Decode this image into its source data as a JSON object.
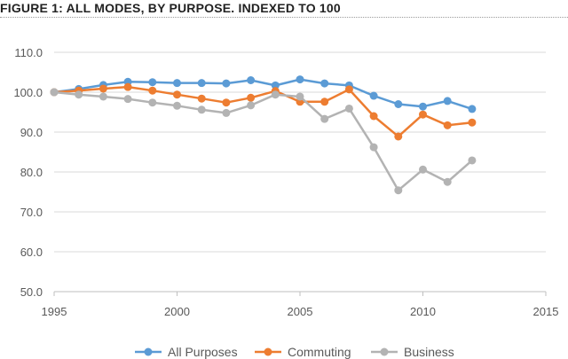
{
  "figure_title": "FIGURE 1: ALL MODES, BY PURPOSE. INDEXED TO 100",
  "chart_data": {
    "type": "line",
    "title": "",
    "xlabel": "",
    "ylabel": "",
    "xlim": [
      1995,
      2015
    ],
    "ylim": [
      50,
      110
    ],
    "x_ticks": [
      1995,
      2000,
      2005,
      2010,
      2015
    ],
    "x_tick_labels": [
      "1995",
      "2000",
      "2005",
      "2010",
      "2015"
    ],
    "y_ticks": [
      50,
      60,
      70,
      80,
      90,
      100,
      110
    ],
    "y_tick_labels": [
      "50.0",
      "60.0",
      "70.0",
      "80.0",
      "90.0",
      "100.0",
      "110.0"
    ],
    "grid": "horizontal",
    "legend_position": "bottom",
    "x": [
      1995,
      1996,
      1997,
      1998,
      1999,
      2000,
      2001,
      2002,
      2003,
      2004,
      2005,
      2006,
      2007,
      2008,
      2009,
      2010,
      2011,
      2012
    ],
    "series": [
      {
        "name": "All Purposes",
        "color": "#5b9bd5",
        "values": [
          100.0,
          100.8,
          101.8,
          102.6,
          102.5,
          102.3,
          102.3,
          102.2,
          103.0,
          101.7,
          103.2,
          102.2,
          101.7,
          99.1,
          97.0,
          96.4,
          97.8,
          95.8
        ]
      },
      {
        "name": "Commuting",
        "color": "#ed7d31",
        "values": [
          100.0,
          100.4,
          100.9,
          101.3,
          100.4,
          99.4,
          98.4,
          97.4,
          98.6,
          100.3,
          97.6,
          97.6,
          100.7,
          94.0,
          88.9,
          94.4,
          91.7,
          92.4
        ]
      },
      {
        "name": "Business",
        "color": "#b3b3b3",
        "values": [
          100.0,
          99.4,
          98.9,
          98.3,
          97.4,
          96.6,
          95.6,
          94.8,
          96.7,
          99.4,
          98.9,
          93.3,
          95.9,
          86.2,
          75.4,
          80.6,
          77.5,
          82.9
        ]
      }
    ]
  }
}
